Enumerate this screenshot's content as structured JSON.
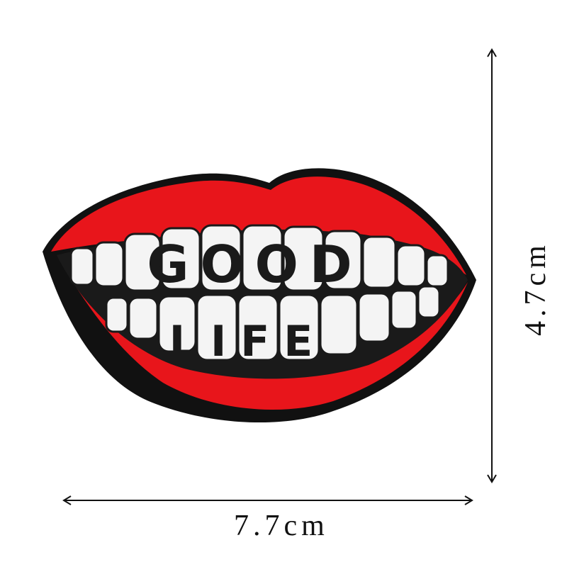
{
  "patch": {
    "top_word": "GOOD",
    "bottom_word": "LIFE",
    "colors": {
      "lip": "#e8151b",
      "outline": "#111111",
      "teeth": "#f4f4f4",
      "mouth": "#1a1a1a"
    }
  },
  "dimensions": {
    "width_label": "7.7cm",
    "height_label": "4.7cm"
  }
}
